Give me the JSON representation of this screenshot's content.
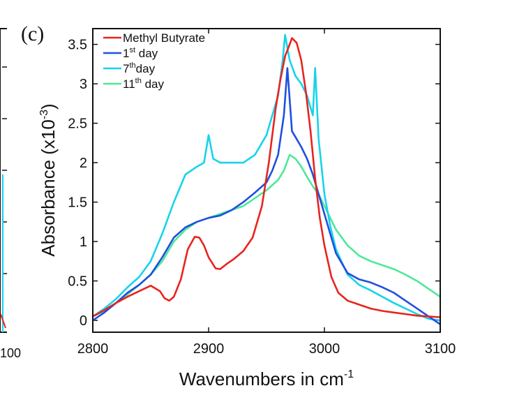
{
  "panel_label": "(c)",
  "left_fragment": {
    "tick_label": "100"
  },
  "chart_data": {
    "type": "line",
    "title": "",
    "xlabel": "Wavenumbers in cm",
    "xlabel_sup": "-1",
    "ylabel": "Absorbance (x10",
    "ylabel_sup": "-3",
    "ylabel_close": ")",
    "xlim": [
      2800,
      3100
    ],
    "ylim": [
      -0.15,
      3.7
    ],
    "xticks": [
      "2800",
      "2900",
      "3000",
      "3100"
    ],
    "yticks": [
      "0",
      "0.5",
      "1",
      "1.5",
      "2",
      "2.5",
      "3",
      "3.5"
    ],
    "legend_position": "top-left",
    "grid": false,
    "series": [
      {
        "name": "Methyl Butyrate",
        "legend_main": "Methyl Butyrate",
        "legend_sup": "",
        "legend_tail": "",
        "color": "#e8231e",
        "x": [
          2800,
          2810,
          2820,
          2830,
          2840,
          2850,
          2858,
          2862,
          2866,
          2870,
          2876,
          2882,
          2888,
          2892,
          2896,
          2900,
          2906,
          2910,
          2916,
          2922,
          2930,
          2938,
          2946,
          2952,
          2958,
          2962,
          2966,
          2970,
          2972,
          2976,
          2980,
          2984,
          2988,
          2992,
          2996,
          3000,
          3006,
          3012,
          3020,
          3030,
          3040,
          3050,
          3060,
          3070,
          3080,
          3090,
          3100
        ],
        "y": [
          0.05,
          0.13,
          0.22,
          0.3,
          0.37,
          0.44,
          0.37,
          0.28,
          0.25,
          0.3,
          0.52,
          0.9,
          1.06,
          1.05,
          0.95,
          0.8,
          0.66,
          0.65,
          0.72,
          0.78,
          0.88,
          1.05,
          1.45,
          2.0,
          2.7,
          3.05,
          3.35,
          3.5,
          3.58,
          3.52,
          3.3,
          2.9,
          2.4,
          1.8,
          1.3,
          0.95,
          0.55,
          0.35,
          0.25,
          0.2,
          0.15,
          0.12,
          0.1,
          0.08,
          0.06,
          0.05,
          0.04
        ]
      },
      {
        "name": "1st day",
        "legend_main": "1",
        "legend_sup": "st",
        "legend_tail": " day",
        "color": "#1f4fe0",
        "x": [
          2800,
          2810,
          2820,
          2830,
          2840,
          2850,
          2860,
          2870,
          2880,
          2890,
          2900,
          2910,
          2920,
          2930,
          2940,
          2950,
          2955,
          2960,
          2965,
          2968,
          2972,
          2976,
          2980,
          2985,
          2990,
          2995,
          3000,
          3005,
          3010,
          3020,
          3030,
          3040,
          3050,
          3060,
          3070,
          3080,
          3090,
          3100
        ],
        "y": [
          0.0,
          0.1,
          0.22,
          0.35,
          0.45,
          0.58,
          0.8,
          1.05,
          1.18,
          1.25,
          1.3,
          1.33,
          1.4,
          1.5,
          1.62,
          1.75,
          1.9,
          2.1,
          2.6,
          3.2,
          2.4,
          2.3,
          2.2,
          2.05,
          1.85,
          1.6,
          1.35,
          1.1,
          0.85,
          0.6,
          0.52,
          0.48,
          0.42,
          0.35,
          0.25,
          0.15,
          0.05,
          -0.05
        ]
      },
      {
        "name": "7th day",
        "legend_main": "7",
        "legend_sup": "th",
        "legend_tail": "day",
        "color": "#18d3eb",
        "x": [
          2800,
          2810,
          2820,
          2830,
          2840,
          2850,
          2860,
          2870,
          2880,
          2890,
          2896,
          2900,
          2904,
          2910,
          2920,
          2930,
          2940,
          2950,
          2955,
          2960,
          2964,
          2966,
          2970,
          2975,
          2980,
          2985,
          2990,
          2992,
          2995,
          3000,
          3005,
          3010,
          3020,
          3030,
          3040,
          3050,
          3060,
          3070,
          3080,
          3090,
          3100
        ],
        "y": [
          0.05,
          0.15,
          0.27,
          0.42,
          0.55,
          0.75,
          1.1,
          1.5,
          1.85,
          1.95,
          2.0,
          2.35,
          2.05,
          2.0,
          2.0,
          2.0,
          2.1,
          2.35,
          2.6,
          2.85,
          3.3,
          3.62,
          3.3,
          3.1,
          3.0,
          2.85,
          2.6,
          3.2,
          2.3,
          1.6,
          1.2,
          0.9,
          0.58,
          0.45,
          0.38,
          0.3,
          0.22,
          0.15,
          0.08,
          0.02,
          0.0
        ]
      },
      {
        "name": "11th day",
        "legend_main": "11",
        "legend_sup": "th",
        "legend_tail": " day",
        "color": "#4ee89a",
        "x": [
          2800,
          2810,
          2820,
          2830,
          2840,
          2850,
          2860,
          2870,
          2880,
          2890,
          2900,
          2910,
          2920,
          2930,
          2940,
          2950,
          2960,
          2965,
          2970,
          2975,
          2980,
          2985,
          2990,
          2995,
          3000,
          3005,
          3010,
          3020,
          3030,
          3040,
          3050,
          3060,
          3070,
          3080,
          3090,
          3100
        ],
        "y": [
          0.05,
          0.12,
          0.22,
          0.33,
          0.45,
          0.58,
          0.75,
          1.0,
          1.15,
          1.25,
          1.3,
          1.35,
          1.4,
          1.45,
          1.55,
          1.65,
          1.78,
          1.9,
          2.1,
          2.05,
          1.95,
          1.82,
          1.7,
          1.6,
          1.45,
          1.3,
          1.15,
          0.95,
          0.82,
          0.75,
          0.7,
          0.65,
          0.58,
          0.5,
          0.4,
          0.3
        ]
      }
    ]
  }
}
